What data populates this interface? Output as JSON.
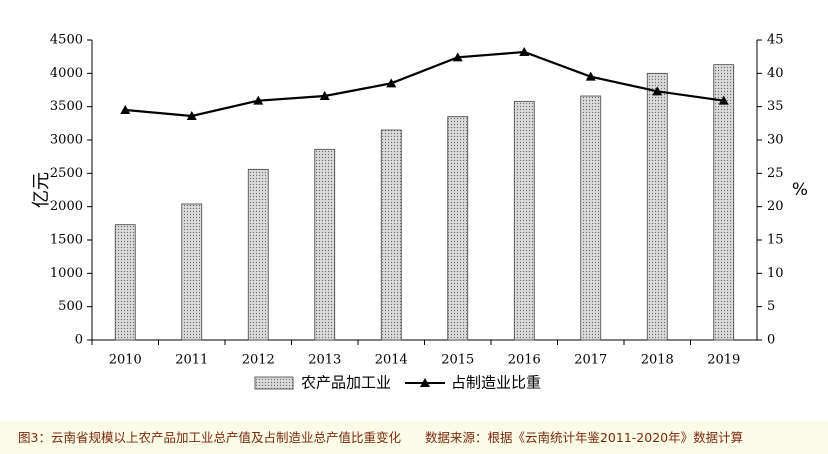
{
  "chart_data": {
    "type": "bar-line",
    "categories": [
      "2010",
      "2011",
      "2012",
      "2013",
      "2014",
      "2015",
      "2016",
      "2017",
      "2018",
      "2019"
    ],
    "y_label": "亿元",
    "y2_label": "%",
    "series": [
      {
        "name": "农产品加工业",
        "type": "bar",
        "color": "#d9d9d9",
        "values": [
          1730,
          2040,
          2560,
          2860,
          3150,
          3350,
          3580,
          3660,
          4000,
          4130
        ]
      },
      {
        "name": "占制造业比重",
        "type": "line",
        "axis": "y2",
        "color": "#000000",
        "values": [
          34.5,
          33.6,
          35.9,
          36.6,
          38.5,
          42.4,
          43.2,
          39.5,
          37.3,
          35.9
        ]
      }
    ],
    "ylim": [
      0,
      4500
    ],
    "yticks": [
      0,
      500,
      1000,
      1500,
      2000,
      2500,
      3000,
      3500,
      4000,
      4500
    ],
    "y2lim": [
      0,
      45
    ],
    "y2ticks": [
      0,
      5,
      10,
      15,
      20,
      25,
      30,
      35,
      40,
      45
    ],
    "grid": false
  },
  "caption": {
    "figure": "图3：云南省规模以上农产品加工业总产值及占制造业总产值比重变化",
    "source": "数据来源：根据《云南统计年鉴2011-2020年》数据计算"
  }
}
